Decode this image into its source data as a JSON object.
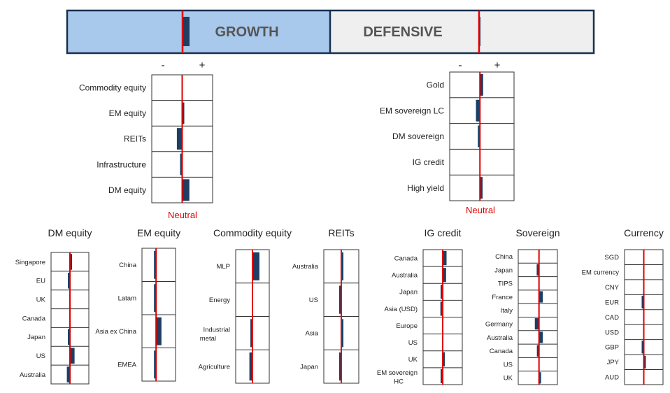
{
  "banner": {
    "growth_label": "GROWTH",
    "defensive_label": "DEFENSIVE",
    "growth_value": 0.25,
    "defensive_value": 0.05
  },
  "colors": {
    "bar": "#1f3e64",
    "neutral_line": "#e00000",
    "growth_fill": "#a8c8ec",
    "defensive_fill": "#efefef",
    "box_border": "#17304f",
    "grid": "#333333"
  },
  "scale": {
    "minus": "-",
    "plus": "+"
  },
  "neutral_label": "Neutral",
  "chart_data": [
    {
      "type": "bar",
      "orientation": "horizontal",
      "categories": [
        "Commodity equity",
        "EM equity",
        "REITs",
        "Infrastructure",
        "DM equity"
      ],
      "values": [
        0,
        0.05,
        -0.2,
        -0.07,
        0.27
      ],
      "xlim": [
        -1,
        1
      ]
    },
    {
      "type": "bar",
      "orientation": "horizontal",
      "categories": [
        "Gold",
        "EM sovereign LC",
        "DM sovereign",
        "IG credit",
        "High yield"
      ],
      "values": [
        0.12,
        -0.15,
        -0.04,
        0,
        0.1
      ],
      "xlim": [
        -1,
        1
      ]
    },
    {
      "type": "bar",
      "orientation": "horizontal",
      "title": "DM equity",
      "categories": [
        "Singapore",
        "EU",
        "UK",
        "Canada",
        "Japan",
        "US",
        "Australia"
      ],
      "values": [
        0.1,
        -0.1,
        0,
        0,
        -0.1,
        0.3,
        -0.2
      ],
      "xlim": [
        -1,
        1
      ]
    },
    {
      "type": "bar",
      "orientation": "horizontal",
      "title": "EM equity",
      "categories": [
        "China",
        "Latam",
        "Asia ex China",
        "EMEA"
      ],
      "values": [
        -0.12,
        -0.08,
        0.35,
        -0.08
      ],
      "xlim": [
        -1,
        1
      ]
    },
    {
      "type": "bar",
      "orientation": "horizontal",
      "title": "Commodity equity",
      "categories": [
        "MLP",
        "Energy",
        "Industrial metal",
        "Agriculture"
      ],
      "values": [
        0.45,
        0,
        -0.08,
        -0.2
      ],
      "xlim": [
        -1,
        1
      ]
    },
    {
      "type": "bar",
      "orientation": "horizontal",
      "title": "REITs",
      "categories": [
        "Australia",
        "US",
        "Asia",
        "Japan"
      ],
      "values": [
        0.1,
        -0.08,
        0.12,
        -0.05
      ],
      "xlim": [
        -1,
        1
      ]
    },
    {
      "type": "bar",
      "orientation": "horizontal",
      "title": "IG credit",
      "categories": [
        "Canada",
        "Australia",
        "Japan",
        "Asia (USD)",
        "Europe",
        "US",
        "UK",
        "EM sovereign HC"
      ],
      "values": [
        0.25,
        0.22,
        -0.12,
        -0.15,
        0,
        0,
        0.1,
        -0.1
      ],
      "xlim": [
        -1,
        1
      ]
    },
    {
      "type": "bar",
      "orientation": "horizontal",
      "title": "Sovereign",
      "categories": [
        "China",
        "Japan",
        "TIPS",
        "France",
        "Italy",
        "Germany",
        "Australia",
        "Canada",
        "US",
        "UK"
      ],
      "values": [
        0,
        -0.15,
        0,
        0.25,
        0,
        -0.27,
        0.25,
        -0.05,
        0,
        0.1
      ],
      "xlim": [
        -1,
        1
      ]
    },
    {
      "type": "bar",
      "orientation": "horizontal",
      "title": "Currency",
      "categories": [
        "SGD",
        "EM currency",
        "CNY",
        "EUR",
        "CAD",
        "USD",
        "GBP",
        "JPY",
        "AUD"
      ],
      "values": [
        0,
        0,
        0,
        -0.13,
        0,
        0,
        -0.04,
        0.08,
        0
      ],
      "xlim": [
        -1,
        1
      ]
    }
  ]
}
